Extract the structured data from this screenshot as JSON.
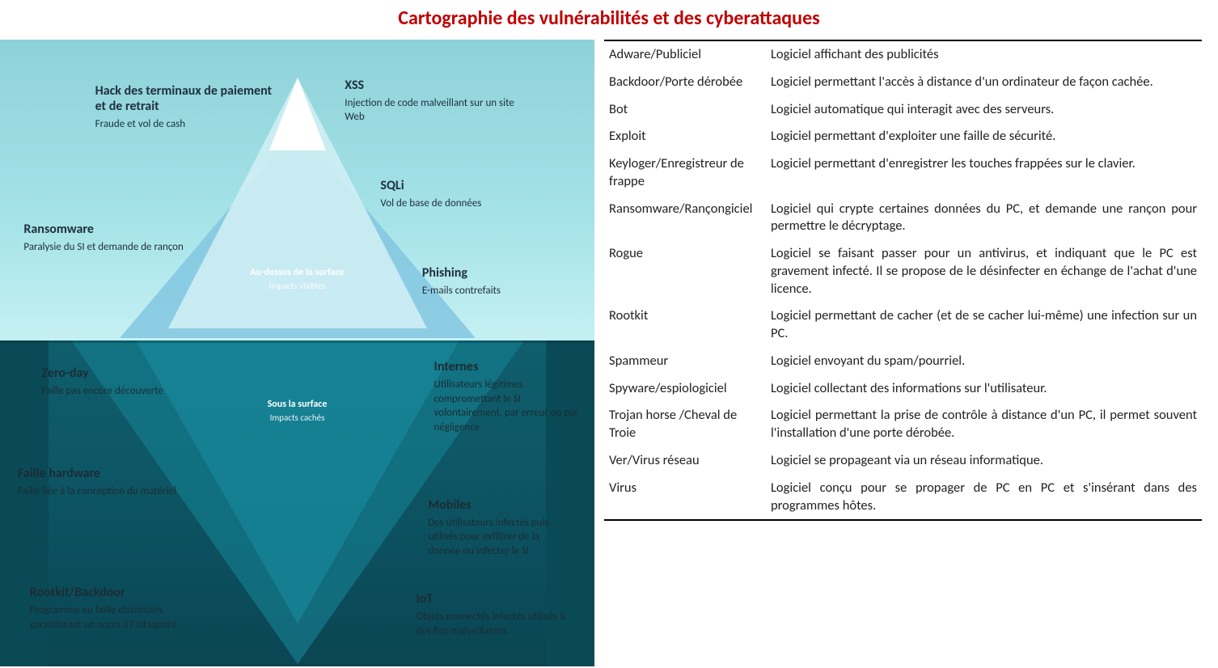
{
  "title": "Cartographie des vulnérabilités et des cyberattaques",
  "colors": {
    "title": "#c00000",
    "sky_top": "#8ed2d8",
    "sky_bottom": "#c5f0f3",
    "water_top": "#0f5e6d",
    "water_bottom": "#0a4553",
    "iceberg_light": "#cfeef4",
    "iceberg_mid": "#82c7e0",
    "iceberg_deep": "#147a8c",
    "text_dark": "#203040",
    "table_border": "#000000",
    "font_family": "Calibri, Arial, sans-serif"
  },
  "iceberg": {
    "above_caption_l1": "Au-dessus de la surface",
    "above_caption_l2": "Impacts visibles",
    "below_caption_l1": "Sous la surface",
    "below_caption_l2": "Impacts cachés",
    "annotations": {
      "hack": {
        "title": "Hack des terminaux de paiement et de retrait",
        "desc": "Fraude et vol de cash"
      },
      "xss": {
        "title": "XSS",
        "desc": "Injection de code malveillant sur un site Web"
      },
      "sqli": {
        "title": "SQLi",
        "desc": "Vol de base de données"
      },
      "ransom": {
        "title": "Ransomware",
        "desc": "Paralysie du SI et demande de rançon"
      },
      "phish": {
        "title": "Phishing",
        "desc": "E-mails contrefaits"
      },
      "zero": {
        "title": "Zero-day",
        "desc": "Faille pas encore découverte"
      },
      "internes": {
        "title": "Internes",
        "desc": "Utilisateurs légitimes compromettant le SI volontairement, par erreur ou par négligence"
      },
      "hw": {
        "title": "Faille hardware",
        "desc": "Faille liée à la conception du matériel"
      },
      "mobiles": {
        "title": "Mobiles",
        "desc": "Des utilisateurs infectés puis utilisés pour exfiltrer de la donnée ou infecter le SI"
      },
      "rootkit": {
        "title": "Rootkit/Backdoor",
        "desc": "Programme ou faille dissimulés garantissant un accès à l'attaquant"
      },
      "iot": {
        "title": "IoT",
        "desc": "Objets connectés infectés utilisés à des fins malveillantes"
      }
    }
  },
  "definitions": [
    {
      "term": "Adware/Publiciel",
      "desc": "Logiciel affichant des publicités"
    },
    {
      "term": "Backdoor/Porte dérobée",
      "desc": "Logiciel permettant l'accès à distance d'un ordinateur de façon cachée."
    },
    {
      "term": "Bot",
      "desc": "Logiciel automatique qui interagit avec des serveurs."
    },
    {
      "term": "Exploit",
      "desc": "Logiciel permettant d'exploiter une faille de sécurité."
    },
    {
      "term": "Keyloger/Enregistreur de frappe",
      "desc": "Logiciel permettant d'enregistrer les touches frappées sur le clavier."
    },
    {
      "term": "Ransomware/Rançongiciel",
      "desc": "Logiciel qui crypte certaines données du PC, et demande une rançon pour permettre le décryptage."
    },
    {
      "term": "Rogue",
      "desc": "Logiciel se faisant passer pour un antivirus, et indiquant que le PC est gravement infecté. Il se propose de le désinfecter en échange de l'achat d'une licence."
    },
    {
      "term": "Rootkit",
      "desc": "Logiciel permettant de cacher (et de se cacher lui-même) une infection sur un PC."
    },
    {
      "term": "Spammeur",
      "desc": "Logiciel envoyant du spam/pourriel."
    },
    {
      "term": "Spyware/espiologiciel",
      "desc": "Logiciel collectant des informations sur l'utilisateur."
    },
    {
      "term": "Trojan horse /Cheval de Troie",
      "desc": "Logiciel permettant la prise de contrôle à distance d'un PC, il permet souvent l'installation d'une porte dérobée."
    },
    {
      "term": "Ver/Virus réseau",
      "desc": "Logiciel se propageant via un réseau informatique."
    },
    {
      "term": "Virus",
      "desc": "Logiciel conçu pour se propager de PC en PC et s'insérant dans des programmes hôtes."
    }
  ]
}
